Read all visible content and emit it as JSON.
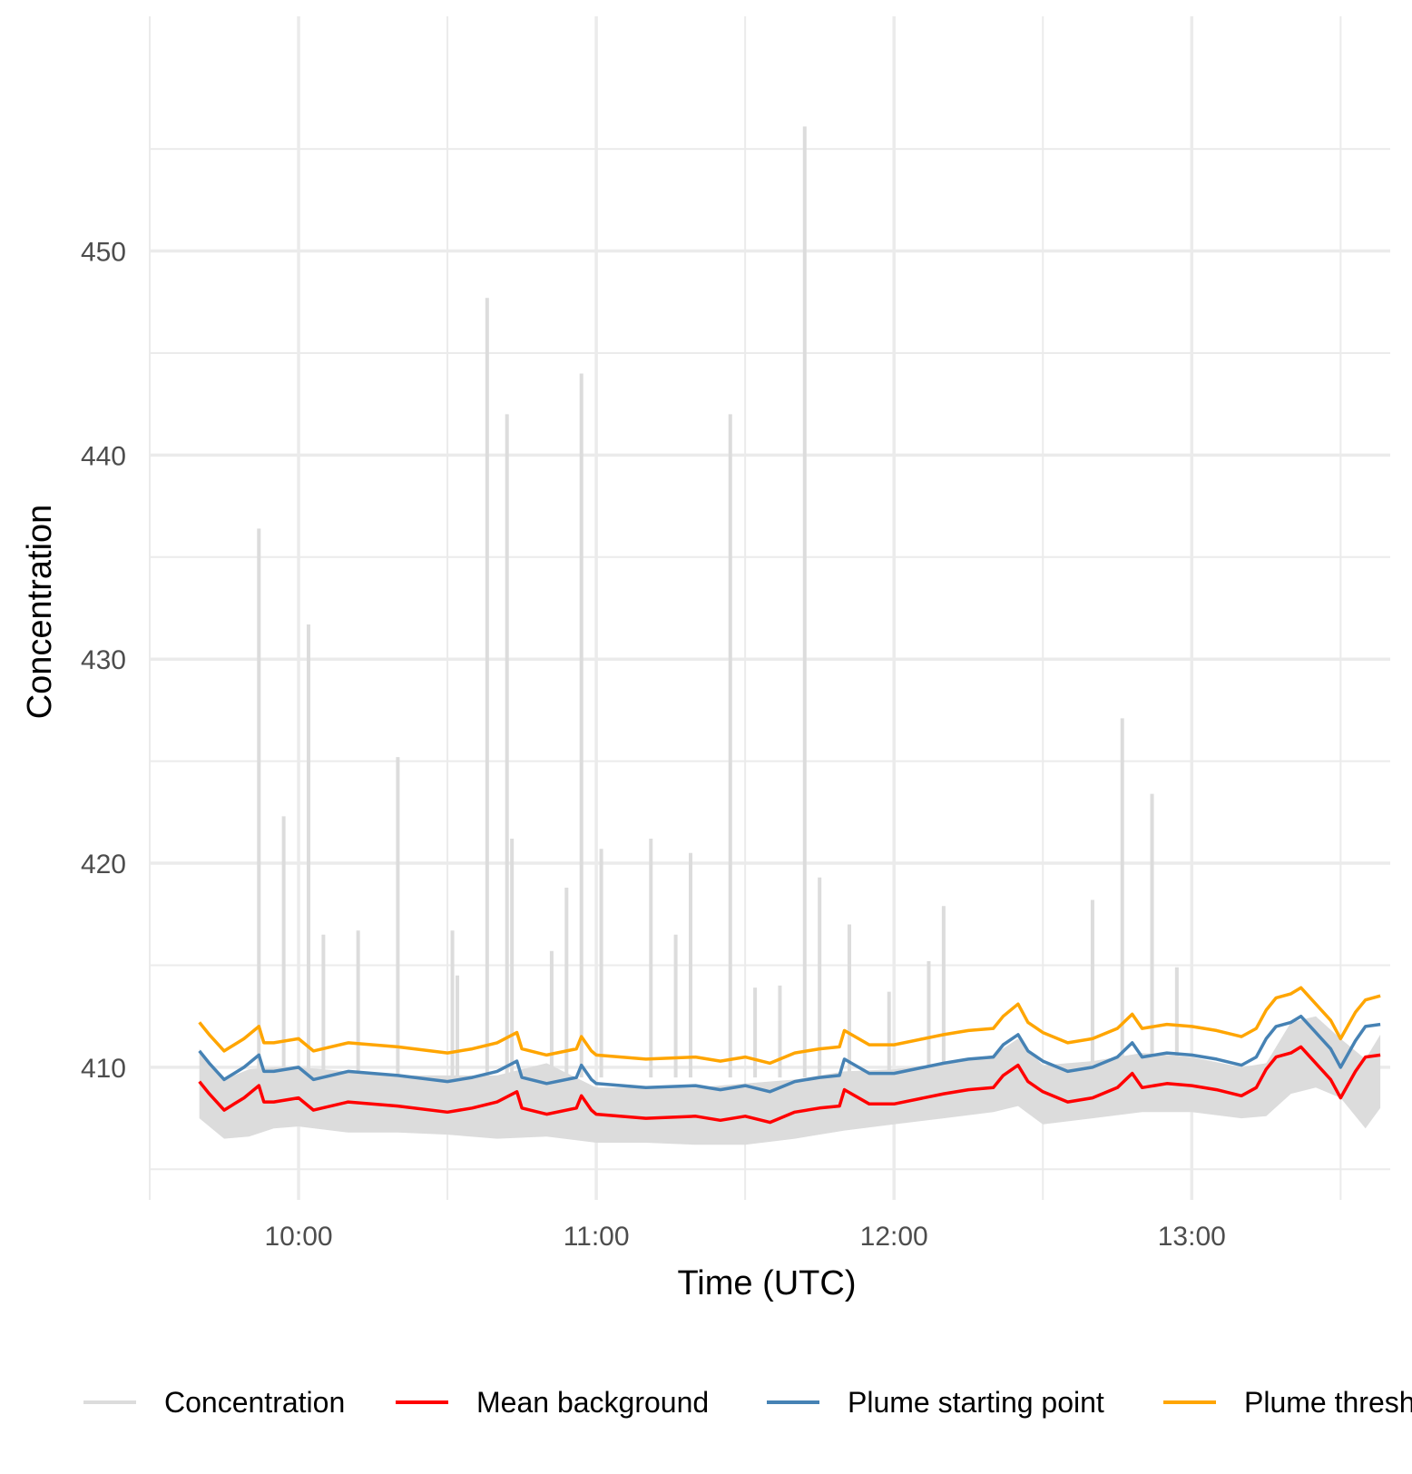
{
  "chart_data": {
    "type": "line",
    "xlabel": "Time (UTC)",
    "ylabel": "Concentration",
    "xlim": [
      "09:30",
      "13:40"
    ],
    "ylim": [
      403.5,
      461.5
    ],
    "x_ticks": [
      {
        "time": "10:00",
        "label": "10:00"
      },
      {
        "time": "11:00",
        "label": "11:00"
      },
      {
        "time": "12:00",
        "label": "12:00"
      },
      {
        "time": "13:00",
        "label": "13:00"
      }
    ],
    "y_ticks": [
      {
        "value": 410,
        "label": "410"
      },
      {
        "value": 420,
        "label": "420"
      },
      {
        "value": 430,
        "label": "430"
      },
      {
        "value": 440,
        "label": "440"
      },
      {
        "value": 450,
        "label": "450"
      }
    ],
    "grid": true,
    "legend_position": "bottom",
    "series": [
      {
        "name": "Concentration",
        "color": "#dcdcdc",
        "baseline_band": {
          "times": [
            "09:40",
            "09:45",
            "09:50",
            "09:55",
            "10:00",
            "10:10",
            "10:20",
            "10:30",
            "10:40",
            "10:50",
            "11:00",
            "11:10",
            "11:20",
            "11:30",
            "11:40",
            "11:50",
            "12:00",
            "12:10",
            "12:20",
            "12:25",
            "12:30",
            "12:40",
            "12:50",
            "13:00",
            "13:10",
            "13:15",
            "13:20",
            "13:25",
            "13:30",
            "13:35",
            "13:38"
          ],
          "low": [
            407.5,
            406.5,
            406.6,
            407.0,
            407.1,
            406.8,
            406.8,
            406.7,
            406.5,
            406.6,
            406.3,
            406.3,
            406.2,
            406.2,
            406.5,
            406.9,
            407.2,
            407.5,
            407.8,
            408.1,
            407.2,
            407.5,
            407.8,
            407.8,
            407.5,
            407.6,
            408.7,
            409.0,
            408.5,
            407.0,
            408.0
          ],
          "high": [
            410.9,
            409.4,
            409.9,
            410.0,
            410.0,
            409.8,
            409.6,
            409.6,
            409.6,
            410.2,
            409.0,
            409.0,
            409.0,
            409.2,
            409.4,
            409.8,
            409.9,
            410.2,
            410.6,
            411.4,
            410.1,
            410.3,
            410.7,
            410.5,
            410.0,
            410.2,
            412.2,
            412.5,
            411.4,
            410.4,
            411.6
          ]
        },
        "spikes": [
          {
            "time": "09:52",
            "value": 436.4
          },
          {
            "time": "09:57",
            "value": 422.3
          },
          {
            "time": "10:02",
            "value": 431.7
          },
          {
            "time": "10:05",
            "value": 416.5
          },
          {
            "time": "10:12",
            "value": 416.7
          },
          {
            "time": "10:20",
            "value": 425.2
          },
          {
            "time": "10:31",
            "value": 416.7
          },
          {
            "time": "10:32",
            "value": 414.5
          },
          {
            "time": "10:38",
            "value": 447.7
          },
          {
            "time": "10:42",
            "value": 442.0
          },
          {
            "time": "10:43",
            "value": 421.2
          },
          {
            "time": "10:51",
            "value": 415.7
          },
          {
            "time": "10:54",
            "value": 418.8
          },
          {
            "time": "10:57",
            "value": 444.0
          },
          {
            "time": "11:01",
            "value": 420.7
          },
          {
            "time": "11:11",
            "value": 421.2
          },
          {
            "time": "11:16",
            "value": 416.5
          },
          {
            "time": "11:19",
            "value": 420.5
          },
          {
            "time": "11:27",
            "value": 442.0
          },
          {
            "time": "11:32",
            "value": 413.9
          },
          {
            "time": "11:37",
            "value": 414.0
          },
          {
            "time": "11:42",
            "value": 456.1
          },
          {
            "time": "11:45",
            "value": 419.3
          },
          {
            "time": "11:51",
            "value": 417.0
          },
          {
            "time": "11:59",
            "value": 413.7
          },
          {
            "time": "12:07",
            "value": 415.2
          },
          {
            "time": "12:10",
            "value": 417.9
          },
          {
            "time": "12:40",
            "value": 418.2
          },
          {
            "time": "12:46",
            "value": 427.1
          },
          {
            "time": "12:52",
            "value": 423.4
          },
          {
            "time": "12:57",
            "value": 414.9
          }
        ]
      },
      {
        "name": "Mean background",
        "color": "#ff0000",
        "times": [
          "09:40",
          "09:42",
          "09:45",
          "09:47",
          "09:49",
          "09:52",
          "09:53",
          "09:55",
          "10:00",
          "10:03",
          "10:10",
          "10:20",
          "10:30",
          "10:35",
          "10:40",
          "10:44",
          "10:45",
          "10:50",
          "10:56",
          "10:57",
          "10:59",
          "11:00",
          "11:10",
          "11:20",
          "11:25",
          "11:30",
          "11:35",
          "11:40",
          "11:45",
          "11:49",
          "11:50",
          "11:55",
          "12:00",
          "12:10",
          "12:15",
          "12:20",
          "12:22",
          "12:25",
          "12:27",
          "12:30",
          "12:35",
          "12:40",
          "12:45",
          "12:48",
          "12:50",
          "12:55",
          "13:00",
          "13:05",
          "13:10",
          "13:13",
          "13:15",
          "13:17",
          "13:20",
          "13:22",
          "13:25",
          "13:28",
          "13:30",
          "13:33",
          "13:35",
          "13:38"
        ],
        "values": [
          409.3,
          408.7,
          407.9,
          408.2,
          408.5,
          409.1,
          408.3,
          408.3,
          408.5,
          407.9,
          408.3,
          408.1,
          407.8,
          408.0,
          408.3,
          408.8,
          408.0,
          407.7,
          408.0,
          408.6,
          407.9,
          407.7,
          407.5,
          407.6,
          407.4,
          407.6,
          407.3,
          407.8,
          408.0,
          408.1,
          408.9,
          408.2,
          408.2,
          408.7,
          408.9,
          409.0,
          409.6,
          410.1,
          409.3,
          408.8,
          408.3,
          408.5,
          409.0,
          409.7,
          409.0,
          409.2,
          409.1,
          408.9,
          408.6,
          409.0,
          409.9,
          410.5,
          410.7,
          411.0,
          410.2,
          409.4,
          408.5,
          409.8,
          410.5,
          410.6
        ]
      },
      {
        "name": "Plume starting point",
        "color": "#4682b4",
        "times": [
          "09:40",
          "09:42",
          "09:45",
          "09:47",
          "09:49",
          "09:52",
          "09:53",
          "09:55",
          "10:00",
          "10:03",
          "10:10",
          "10:20",
          "10:30",
          "10:35",
          "10:40",
          "10:44",
          "10:45",
          "10:50",
          "10:56",
          "10:57",
          "10:59",
          "11:00",
          "11:10",
          "11:20",
          "11:25",
          "11:30",
          "11:35",
          "11:40",
          "11:45",
          "11:49",
          "11:50",
          "11:55",
          "12:00",
          "12:10",
          "12:15",
          "12:20",
          "12:22",
          "12:25",
          "12:27",
          "12:30",
          "12:35",
          "12:40",
          "12:45",
          "12:48",
          "12:50",
          "12:55",
          "13:00",
          "13:05",
          "13:10",
          "13:13",
          "13:15",
          "13:17",
          "13:20",
          "13:22",
          "13:25",
          "13:28",
          "13:30",
          "13:33",
          "13:35",
          "13:38"
        ],
        "values": [
          410.8,
          410.2,
          409.4,
          409.7,
          410.0,
          410.6,
          409.8,
          409.8,
          410.0,
          409.4,
          409.8,
          409.6,
          409.3,
          409.5,
          409.8,
          410.3,
          409.5,
          409.2,
          409.5,
          410.1,
          409.4,
          409.2,
          409.0,
          409.1,
          408.9,
          409.1,
          408.8,
          409.3,
          409.5,
          409.6,
          410.4,
          409.7,
          409.7,
          410.2,
          410.4,
          410.5,
          411.1,
          411.6,
          410.8,
          410.3,
          409.8,
          410.0,
          410.5,
          411.2,
          410.5,
          410.7,
          410.6,
          410.4,
          410.1,
          410.5,
          411.4,
          412.0,
          412.2,
          412.5,
          411.7,
          410.9,
          410.0,
          411.3,
          412.0,
          412.1
        ]
      },
      {
        "name": "Plume threshold",
        "color": "#ffa500",
        "times": [
          "09:40",
          "09:42",
          "09:45",
          "09:47",
          "09:49",
          "09:52",
          "09:53",
          "09:55",
          "10:00",
          "10:03",
          "10:10",
          "10:20",
          "10:30",
          "10:35",
          "10:40",
          "10:44",
          "10:45",
          "10:50",
          "10:56",
          "10:57",
          "10:59",
          "11:00",
          "11:10",
          "11:20",
          "11:25",
          "11:30",
          "11:35",
          "11:40",
          "11:45",
          "11:49",
          "11:50",
          "11:55",
          "12:00",
          "12:10",
          "12:15",
          "12:20",
          "12:22",
          "12:25",
          "12:27",
          "12:30",
          "12:35",
          "12:40",
          "12:45",
          "12:48",
          "12:50",
          "12:55",
          "13:00",
          "13:05",
          "13:10",
          "13:13",
          "13:15",
          "13:17",
          "13:20",
          "13:22",
          "13:25",
          "13:28",
          "13:30",
          "13:33",
          "13:35",
          "13:38"
        ],
        "values": [
          412.2,
          411.6,
          410.8,
          411.1,
          411.4,
          412.0,
          411.2,
          411.2,
          411.4,
          410.8,
          411.2,
          411.0,
          410.7,
          410.9,
          411.2,
          411.7,
          410.9,
          410.6,
          410.9,
          411.5,
          410.8,
          410.6,
          410.4,
          410.5,
          410.3,
          410.5,
          410.2,
          410.7,
          410.9,
          411.0,
          411.8,
          411.1,
          411.1,
          411.6,
          411.8,
          411.9,
          412.5,
          413.1,
          412.2,
          411.7,
          411.2,
          411.4,
          411.9,
          412.6,
          411.9,
          412.1,
          412.0,
          411.8,
          411.5,
          411.9,
          412.8,
          413.4,
          413.6,
          413.9,
          413.1,
          412.3,
          411.4,
          412.7,
          413.3,
          413.5
        ]
      }
    ]
  }
}
